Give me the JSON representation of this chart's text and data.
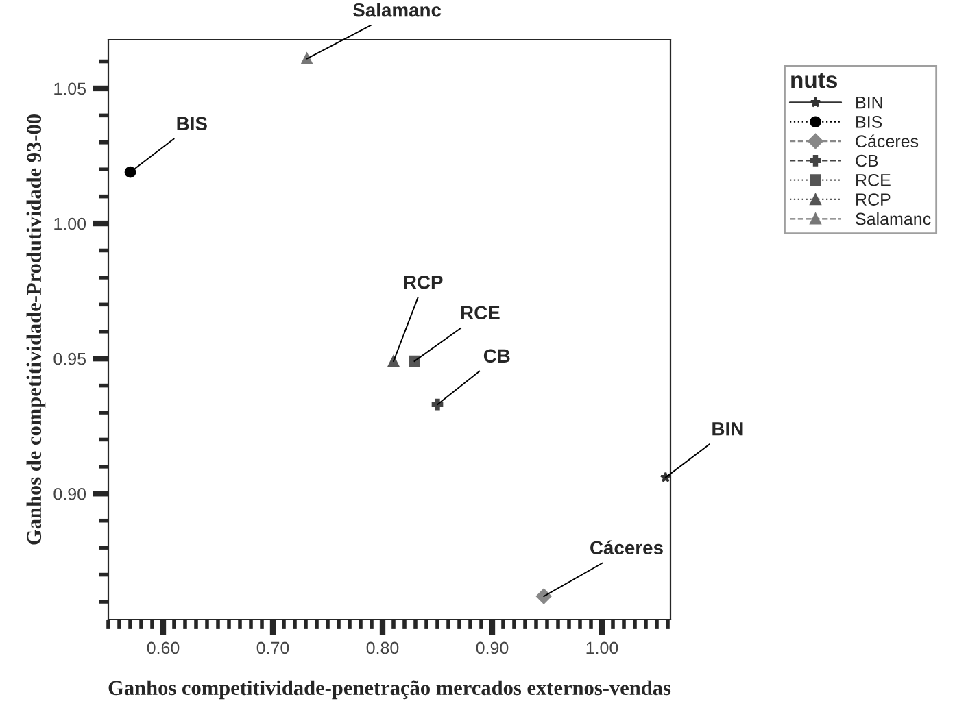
{
  "chart_data": {
    "type": "scatter",
    "xlabel": "Ganhos competitividade-penetração mercados externos-vendas",
    "ylabel": "Ganhos de competitividade-Produtividade 93-00",
    "legend_title": "nuts",
    "legend": "top right",
    "xlim": [
      0.55,
      1.0625
    ],
    "ylim": [
      0.8534,
      1.068
    ],
    "xticks": [
      {
        "value": 0.6,
        "label": "0.60"
      },
      {
        "value": 0.7,
        "label": "0.70"
      },
      {
        "value": 0.8,
        "label": "0.80"
      },
      {
        "value": 0.9,
        "label": "0.90"
      },
      {
        "value": 1.0,
        "label": "1.00"
      }
    ],
    "yticks": [
      {
        "value": 0.9,
        "label": "0.90"
      },
      {
        "value": 0.95,
        "label": "0.95"
      },
      {
        "value": 1.0,
        "label": "1.00"
      },
      {
        "value": 1.05,
        "label": "1.05"
      }
    ],
    "grid": false,
    "series": [
      {
        "name": "BIN",
        "color": "#333333",
        "marker": "star",
        "line_style": "solid",
        "x": [
          1.058
        ],
        "values": [
          0.906
        ]
      },
      {
        "name": "BIS",
        "color": "#000000",
        "marker": "circle",
        "line_style": "dotted",
        "x": [
          0.57
        ],
        "values": [
          1.019
        ]
      },
      {
        "name": "Cáceres",
        "color": "#888888",
        "marker": "diamond",
        "line_style": "dashed",
        "x": [
          0.947
        ],
        "values": [
          0.862
        ]
      },
      {
        "name": "CB",
        "color": "#444444",
        "marker": "cross",
        "line_style": "dashed",
        "x": [
          0.85
        ],
        "values": [
          0.933
        ]
      },
      {
        "name": "RCE",
        "color": "#555555",
        "marker": "square",
        "line_style": "dotted",
        "x": [
          0.829
        ],
        "values": [
          0.949
        ]
      },
      {
        "name": "RCP",
        "color": "#555555",
        "marker": "triangle",
        "line_style": "dotted",
        "x": [
          0.81
        ],
        "values": [
          0.949
        ]
      },
      {
        "name": "Salamanc",
        "color": "#777777",
        "marker": "triangle",
        "line_style": "dashed",
        "x": [
          0.731
        ],
        "values": [
          1.061
        ]
      }
    ]
  }
}
